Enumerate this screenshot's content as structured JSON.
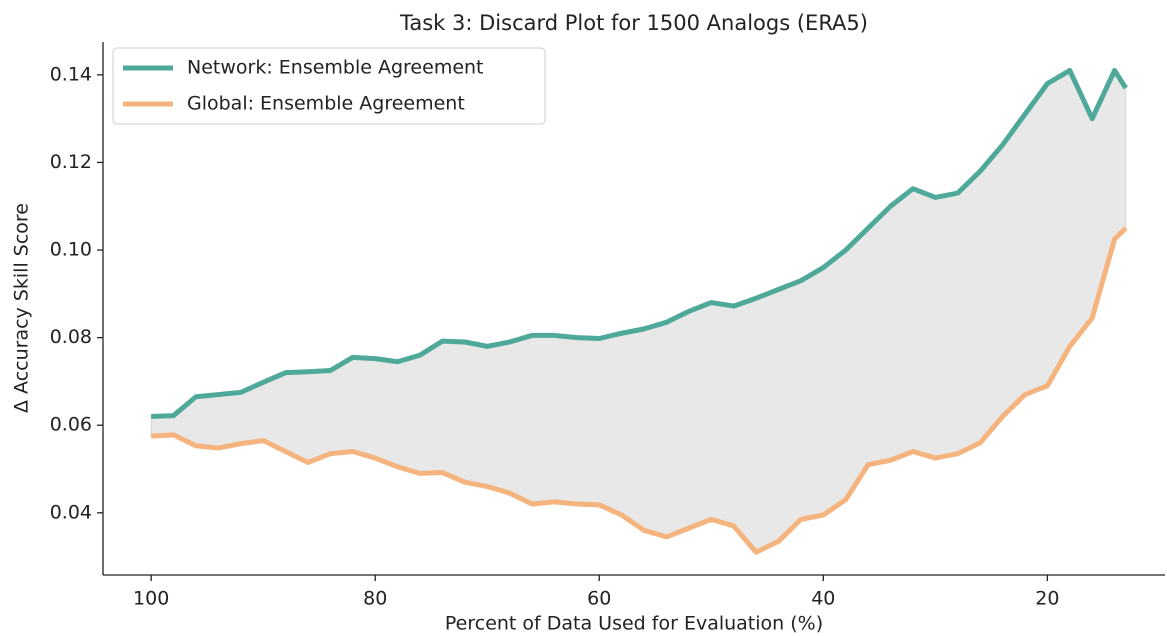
{
  "chart_data": {
    "type": "line",
    "title": "Task 3: Discard Plot for 1500 Analogs (ERA5)",
    "xlabel": "Percent of Data Used for Evaluation (%)",
    "ylabel": "Δ Accuracy Skill Score",
    "x": [
      100,
      98,
      96,
      94,
      92,
      90,
      88,
      86,
      84,
      82,
      80,
      78,
      76,
      74,
      72,
      70,
      68,
      66,
      64,
      62,
      60,
      58,
      56,
      54,
      52,
      50,
      48,
      46,
      44,
      42,
      40,
      38,
      36,
      34,
      32,
      30,
      28,
      26,
      24,
      22,
      20,
      18,
      16,
      14,
      13
    ],
    "series": [
      {
        "name": "Network: Ensemble Agreement",
        "color": "#4fa99a",
        "values": [
          0.062,
          0.0622,
          0.0665,
          0.067,
          0.0675,
          0.0698,
          0.072,
          0.0722,
          0.0725,
          0.0755,
          0.0752,
          0.0745,
          0.076,
          0.0792,
          0.079,
          0.078,
          0.079,
          0.0805,
          0.0805,
          0.08,
          0.0798,
          0.081,
          0.082,
          0.0835,
          0.086,
          0.088,
          0.0872,
          0.089,
          0.091,
          0.093,
          0.096,
          0.1,
          0.105,
          0.11,
          0.114,
          0.112,
          0.113,
          0.118,
          0.124,
          0.131,
          0.138,
          0.141,
          0.13,
          0.141,
          0.137
        ]
      },
      {
        "name": "Global: Ensemble Agreement",
        "color": "#f5b47e",
        "values": [
          0.0575,
          0.0578,
          0.0553,
          0.0548,
          0.0558,
          0.0565,
          0.054,
          0.0515,
          0.0535,
          0.054,
          0.0525,
          0.0505,
          0.049,
          0.0492,
          0.047,
          0.046,
          0.0445,
          0.042,
          0.0425,
          0.042,
          0.0418,
          0.0395,
          0.036,
          0.0345,
          0.0365,
          0.0385,
          0.037,
          0.031,
          0.0335,
          0.0385,
          0.0395,
          0.043,
          0.051,
          0.052,
          0.054,
          0.0525,
          0.0535,
          0.056,
          0.062,
          0.067,
          0.069,
          0.078,
          0.0845,
          0.1025,
          0.105
        ]
      }
    ],
    "fill_between": true,
    "fill_color": "#e8e8e8",
    "xlim": [
      104.3,
      9.5
    ],
    "ylim": [
      0.0258,
      0.1475
    ],
    "xticks": [
      100,
      80,
      60,
      40,
      20
    ],
    "yticks": [
      0.04,
      0.06,
      0.08,
      {
        "value": 0.1,
        "label": "0.10"
      },
      0.12,
      0.14
    ],
    "legend": "upper left"
  }
}
